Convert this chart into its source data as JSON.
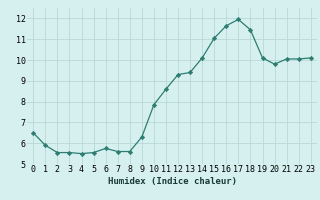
{
  "x": [
    0,
    1,
    2,
    3,
    4,
    5,
    6,
    7,
    8,
    9,
    10,
    11,
    12,
    13,
    14,
    15,
    16,
    17,
    18,
    19,
    20,
    21,
    22,
    23
  ],
  "y": [
    6.5,
    5.9,
    5.55,
    5.55,
    5.5,
    5.55,
    5.75,
    5.6,
    5.6,
    6.3,
    7.85,
    8.6,
    9.3,
    9.4,
    10.1,
    11.05,
    11.65,
    11.95,
    11.45,
    10.1,
    9.8,
    10.05,
    10.05,
    10.1
  ],
  "xlabel": "Humidex (Indice chaleur)",
  "xlim": [
    -0.5,
    23.5
  ],
  "ylim": [
    5,
    12.5
  ],
  "yticks": [
    5,
    6,
    7,
    8,
    9,
    10,
    11,
    12
  ],
  "xticks": [
    0,
    1,
    2,
    3,
    4,
    5,
    6,
    7,
    8,
    9,
    10,
    11,
    12,
    13,
    14,
    15,
    16,
    17,
    18,
    19,
    20,
    21,
    22,
    23
  ],
  "line_color": "#2e7d72",
  "marker": "D",
  "marker_size": 2.2,
  "bg_color": "#d6f0ef",
  "grid_color": "#b8d8d6",
  "label_fontsize": 6.5,
  "tick_fontsize": 6.0
}
